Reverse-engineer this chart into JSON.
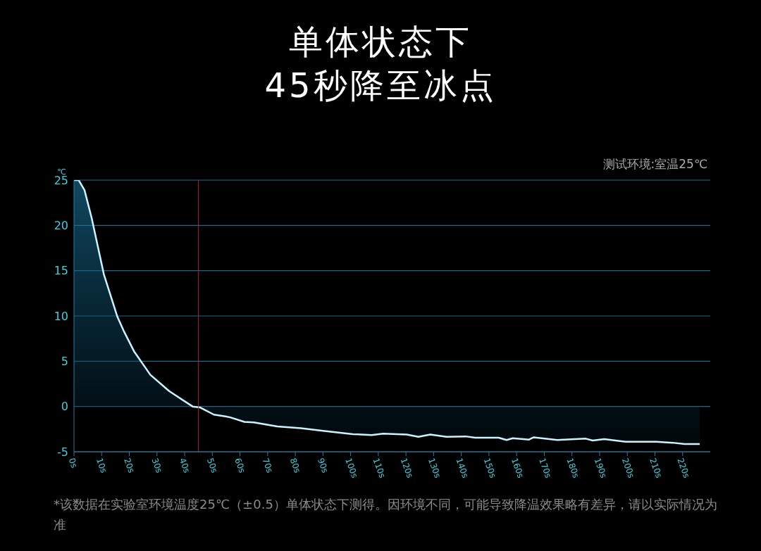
{
  "chart_data": {
    "type": "area",
    "title": "单体状态下",
    "subtitle": "45秒降至冰点",
    "ylabel": "℃",
    "annotations": [
      "测试环境:室温25℃",
      "*该数据在实验室环境温度25℃（±0.5）单体状态下测得。因环境不同，可能导致降温效果略有差异，请以实际情况为准"
    ],
    "x": [
      0,
      1.7,
      3.8,
      6.4,
      10.8,
      15.7,
      17.9,
      21.7,
      27.6,
      34.4,
      42.9,
      45.5,
      50.6,
      54.8,
      56.5,
      61.6,
      65,
      73.5,
      82,
      90.6,
      100.8,
      107.6,
      111.8,
      120.3,
      124.5,
      128.8,
      134.7,
      141.6,
      145,
      153.5,
      156.4,
      158.6,
      164.5,
      166.2,
      174.7,
      185,
      187.5,
      191.7,
      199.4,
      210.5,
      216.4,
      220.7,
      226.2
    ],
    "series": [
      {
        "color": "#c8f4ff",
        "values": [
          25,
          25,
          23.9,
          20.8,
          14.6,
          9.9,
          8.4,
          6.1,
          3.5,
          1.7,
          0,
          -0.1,
          -0.9,
          -1.1,
          -1.2,
          -1.7,
          -1.75,
          -2.2,
          -2.4,
          -2.7,
          -3.05,
          -3.15,
          -3,
          -3.1,
          -3.35,
          -3.1,
          -3.35,
          -3.3,
          -3.45,
          -3.45,
          -3.7,
          -3.5,
          -3.65,
          -3.4,
          -3.7,
          -3.55,
          -3.75,
          -3.6,
          -3.9,
          -3.9,
          -4,
          -4.15,
          -4.15
        ]
      }
    ],
    "xlim": [
      0,
      230
    ],
    "xticks": [
      {
        "value": 0,
        "label": "0s"
      },
      {
        "value": 10,
        "label": "10s"
      },
      {
        "value": 20,
        "label": "20s"
      },
      {
        "value": 30,
        "label": "30s"
      },
      {
        "value": 40,
        "label": "40s"
      },
      {
        "value": 50,
        "label": "50s"
      },
      {
        "value": 60,
        "label": "60s"
      },
      {
        "value": 70,
        "label": "70s"
      },
      {
        "value": 80,
        "label": "80s"
      },
      {
        "value": 90,
        "label": "90s"
      },
      {
        "value": 100,
        "label": "100s"
      },
      {
        "value": 110,
        "label": "110s"
      },
      {
        "value": 120,
        "label": "120s"
      },
      {
        "value": 130,
        "label": "130s"
      },
      {
        "value": 140,
        "label": "140s"
      },
      {
        "value": 150,
        "label": "150s"
      },
      {
        "value": 160,
        "label": "160s"
      },
      {
        "value": 170,
        "label": "170s"
      },
      {
        "value": 180,
        "label": "180s"
      },
      {
        "value": 190,
        "label": "190s"
      },
      {
        "value": 200,
        "label": "200s"
      },
      {
        "value": 210,
        "label": "210s"
      },
      {
        "value": 220,
        "label": "220s"
      }
    ],
    "ylim": [
      -5,
      25
    ],
    "yticks": [
      -5,
      0,
      5,
      10,
      15,
      20,
      25
    ],
    "grid": "y",
    "legend": false,
    "marker": "none",
    "line_style": "solid",
    "ref_lines": [
      {
        "axis": "x",
        "value": 45,
        "color": "#a02838",
        "line_style": "solid"
      }
    ]
  }
}
